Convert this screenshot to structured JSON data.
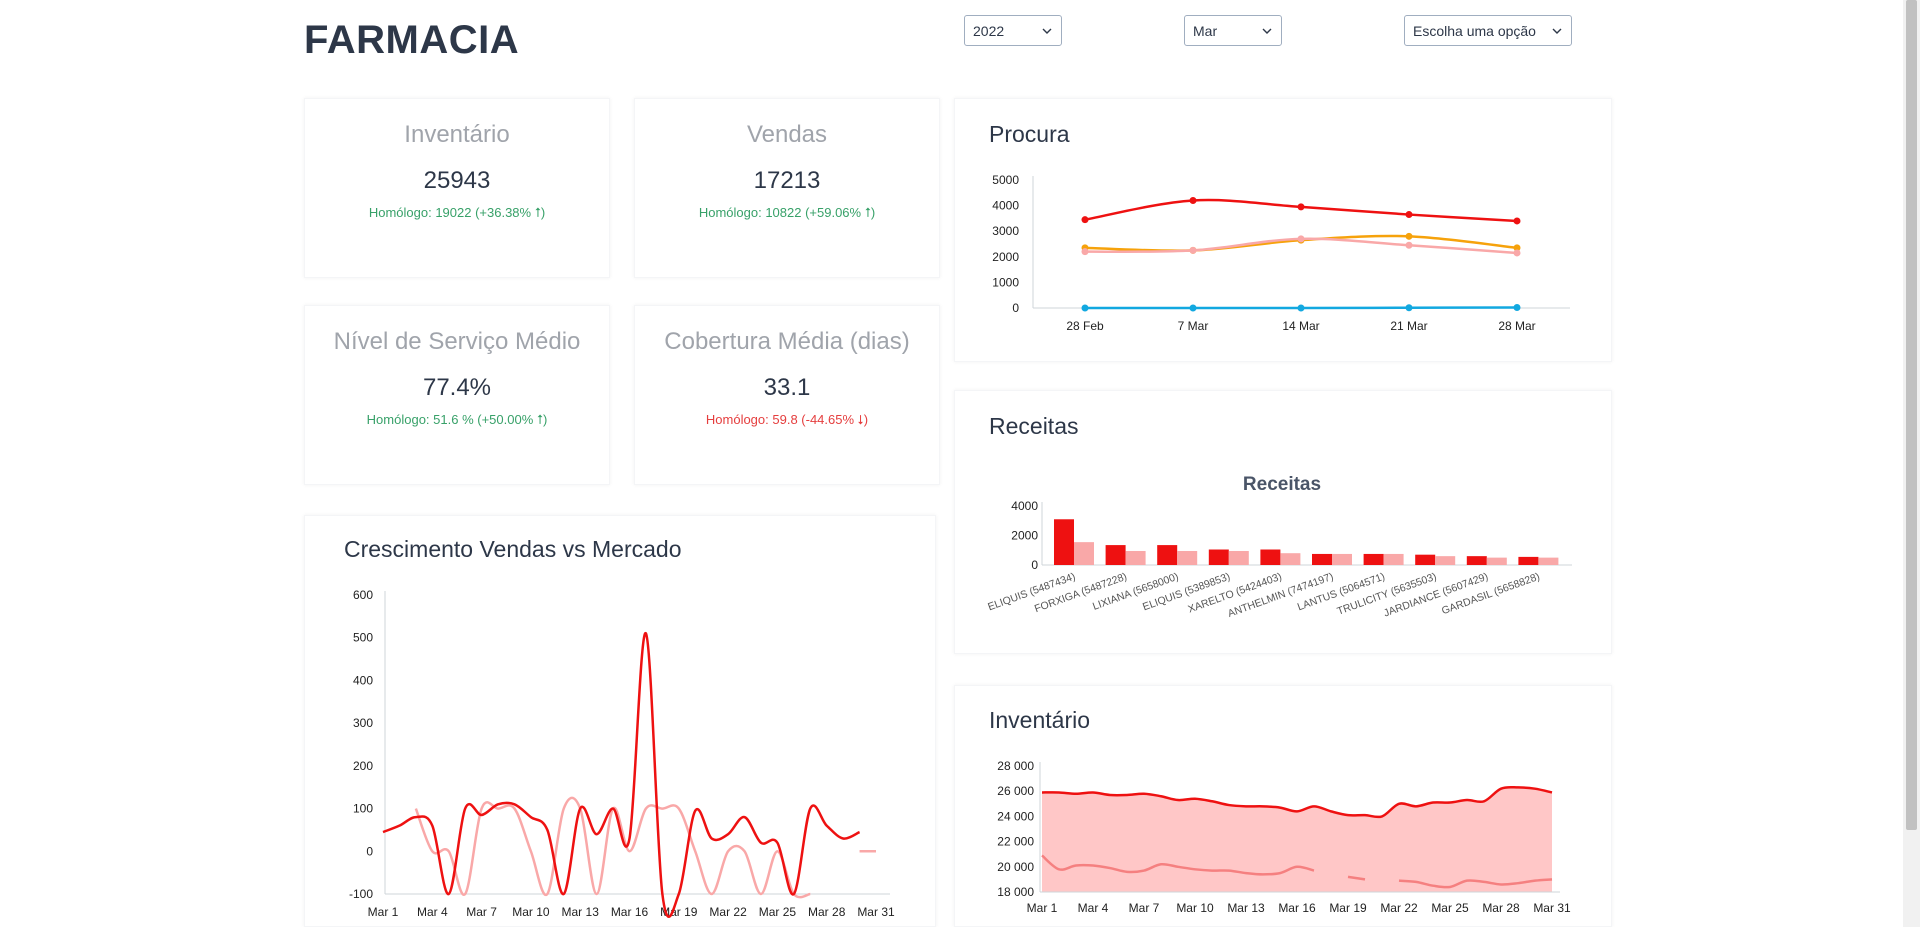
{
  "header": {
    "title": "FARMACIA",
    "year_select": "2022",
    "month_select": "Mar",
    "option_select": "Escolha uma opção"
  },
  "kpis": {
    "inventario": {
      "title": "Inventário",
      "value": "25943",
      "delta": "Homólogo: 19022 (+36.38% ⭡)"
    },
    "vendas": {
      "title": "Vendas",
      "value": "17213",
      "delta": "Homólogo: 10822 (+59.06% ⭡)"
    },
    "servico": {
      "title": "Nível de Serviço Médio",
      "value": "77.4%",
      "delta": "Homólogo: 51.6 % (+50.00% ⭡)"
    },
    "cobertura": {
      "title": "Cobertura Média (dias)",
      "value": "33.1",
      "delta": "Homólogo: 59.8 (-44.65% ⭣)"
    }
  },
  "colors": {
    "red": "#ee1111",
    "pink": "#f9a8a8",
    "orange": "#f6a20b",
    "blue": "#12a8e0",
    "axis": "#cfd4da"
  },
  "chart_data": [
    {
      "id": "procura",
      "title": "Procura",
      "type": "line",
      "x": [
        "28 Feb",
        "7 Mar",
        "14 Mar",
        "21 Mar",
        "28 Mar"
      ],
      "yticks": [
        0,
        1000,
        2000,
        3000,
        4000,
        5000
      ],
      "ylim": [
        0,
        5000
      ],
      "series": [
        {
          "values": [
            3450,
            4200,
            3950,
            3650,
            3400
          ],
          "color": "#ee1111"
        },
        {
          "values": [
            2350,
            2250,
            2650,
            2800,
            2350
          ],
          "color": "#f6a20b"
        },
        {
          "values": [
            2200,
            2250,
            2700,
            2450,
            2150
          ],
          "color": "#f9a8a8"
        },
        {
          "values": [
            0,
            0,
            0,
            10,
            20
          ],
          "color": "#12a8e0"
        }
      ]
    },
    {
      "id": "receitas",
      "title": "Receitas",
      "inner_title": "Receitas",
      "type": "bar",
      "categories": [
        "ELIQUIS (5487434)",
        "FORXIGA (5487228)",
        "LIXIANA (5658000)",
        "ELIQUIS (5389853)",
        "XARELTO (5424403)",
        "ANTHELMIN (7474197)",
        "LANTUS (5064571)",
        "TRULICITY (5635503)",
        "JARDIANCE (5607429)",
        "GARDASIL (5658828)"
      ],
      "yticks": [
        0,
        2000,
        4000
      ],
      "ylim": [
        0,
        4000
      ],
      "series": [
        {
          "values": [
            3100,
            1350,
            1350,
            1050,
            1050,
            750,
            750,
            700,
            600,
            550
          ],
          "color": "#ee1111"
        },
        {
          "values": [
            1550,
            950,
            950,
            950,
            800,
            750,
            750,
            600,
            500,
            500
          ],
          "color": "#f9a8a8"
        }
      ]
    },
    {
      "id": "crescimento",
      "title": "Crescimento Vendas vs Mercado",
      "type": "line",
      "xticks": [
        "Mar 1",
        "Mar 4",
        "Mar 7",
        "Mar 10",
        "Mar 13",
        "Mar 16",
        "Mar 19",
        "Mar 22",
        "Mar 25",
        "Mar 28",
        "Mar 31"
      ],
      "yticks": [
        -100,
        0,
        100,
        200,
        300,
        400,
        500,
        600
      ],
      "ylim": [
        -100,
        600
      ],
      "days": 31,
      "series": [
        {
          "color": "#f9a8a8",
          "values": [
            null,
            null,
            100,
            0,
            0,
            -100,
            100,
            100,
            100,
            0,
            -100,
            100,
            100,
            -100,
            100,
            0,
            100,
            100,
            100,
            0,
            -100,
            0,
            0,
            -100,
            0,
            -100,
            -100,
            null,
            null,
            0,
            0
          ]
        },
        {
          "color": "#ee1111",
          "values": [
            45,
            60,
            80,
            60,
            -100,
            100,
            85,
            110,
            110,
            80,
            50,
            -100,
            100,
            40,
            100,
            30,
            510,
            -100,
            -100,
            95,
            30,
            40,
            80,
            20,
            20,
            -100,
            100,
            60,
            30,
            45,
            null
          ]
        }
      ]
    },
    {
      "id": "inventario",
      "title": "Inventário",
      "type": "area",
      "xticks": [
        "Mar 1",
        "Mar 4",
        "Mar 7",
        "Mar 10",
        "Mar 13",
        "Mar 16",
        "Mar 19",
        "Mar 22",
        "Mar 25",
        "Mar 28",
        "Mar 31"
      ],
      "yticks": [
        "18 000",
        "20 000",
        "22 000",
        "24 000",
        "26 000",
        "28 000"
      ],
      "ylim": [
        18000,
        28000
      ],
      "days": 31,
      "series": [
        {
          "color": "#ee1111",
          "values": [
            25900,
            25900,
            25800,
            25900,
            25700,
            25700,
            25800,
            25600,
            25300,
            25400,
            25200,
            24900,
            24800,
            24800,
            24700,
            24400,
            24800,
            24400,
            24100,
            24100,
            24000,
            25000,
            24800,
            25100,
            25100,
            25300,
            25200,
            26200,
            26300,
            26200,
            25900
          ]
        },
        {
          "color": "#f58080",
          "values": [
            20900,
            19800,
            20100,
            20100,
            19900,
            19600,
            19700,
            20200,
            20000,
            19800,
            19700,
            19700,
            19500,
            19400,
            19500,
            20000,
            19700,
            null,
            19200,
            19000,
            null,
            18900,
            18800,
            18500,
            18400,
            18900,
            18800,
            18600,
            18700,
            18900,
            19000
          ]
        }
      ]
    }
  ]
}
